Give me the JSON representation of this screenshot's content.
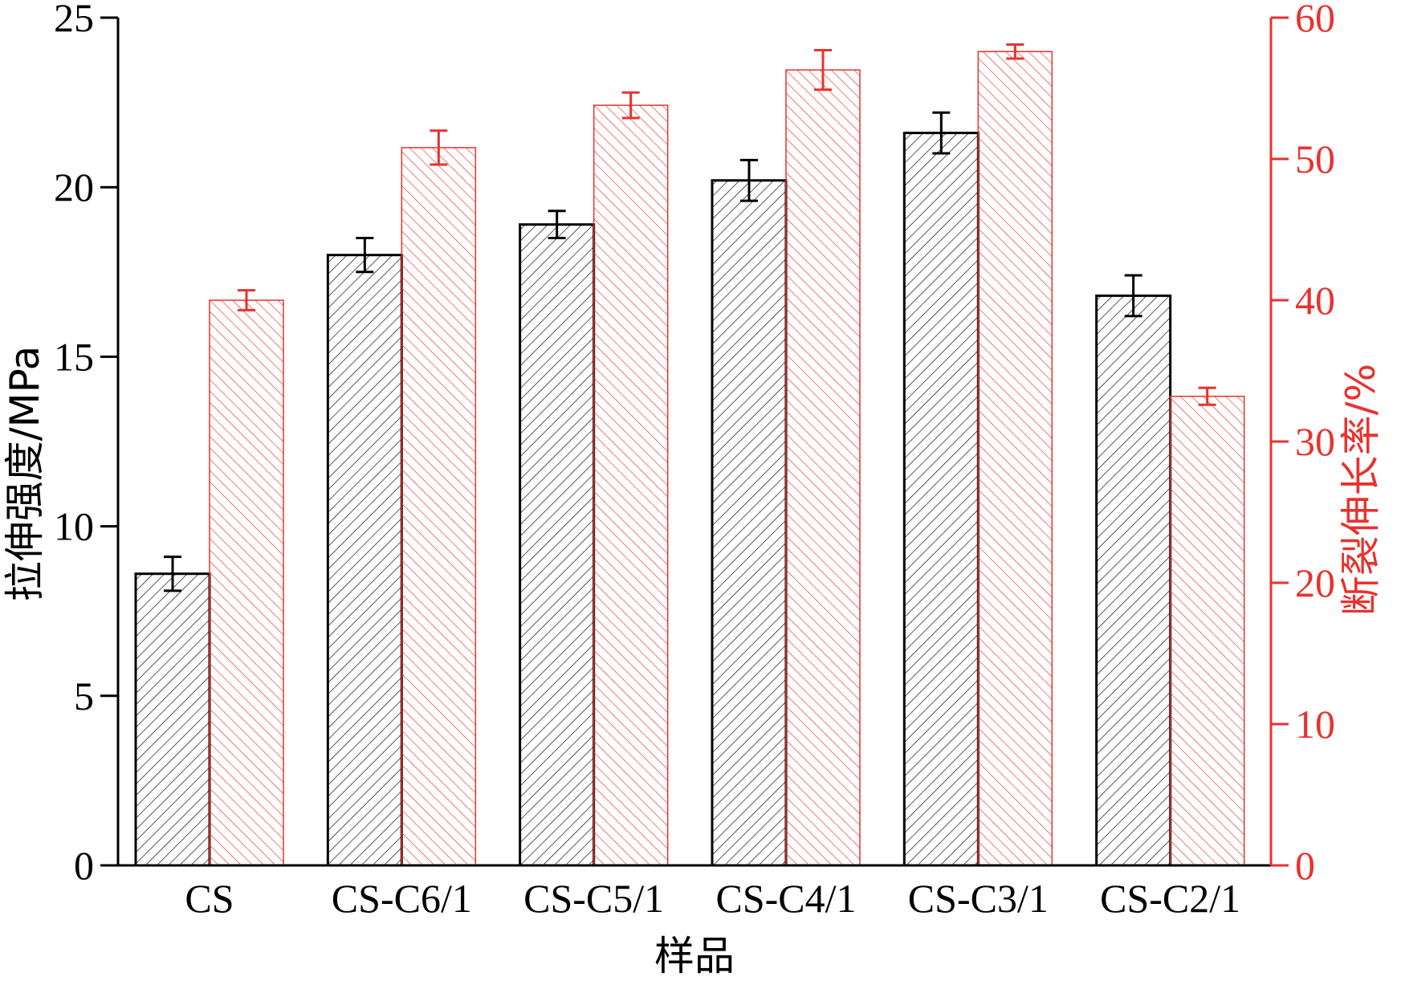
{
  "chart_data": {
    "type": "bar",
    "categories": [
      "CS",
      "CS-C6/1",
      "CS-C5/1",
      "CS-C4/1",
      "CS-C3/1",
      "CS-C2/1"
    ],
    "xlabel": "样品",
    "y_left": {
      "label": "拉伸强度/MPa",
      "ylim": [
        0,
        25
      ],
      "ticks": [
        0,
        5,
        10,
        15,
        20,
        25
      ],
      "color": "#000000"
    },
    "y_right": {
      "label": "断裂伸长率/%",
      "ylim": [
        0,
        60
      ],
      "ticks": [
        0,
        10,
        20,
        30,
        40,
        50,
        60
      ],
      "color": "#e8322e"
    },
    "series": [
      {
        "axis": "left",
        "color": "#000000",
        "hatch": "forward",
        "values": [
          8.6,
          18.0,
          18.9,
          20.2,
          21.6,
          16.8
        ],
        "errors": [
          0.5,
          0.5,
          0.4,
          0.6,
          0.6,
          0.6
        ]
      },
      {
        "axis": "right",
        "color": "#e8322e",
        "hatch": "backward",
        "values": [
          40.0,
          50.8,
          53.8,
          56.3,
          57.6,
          33.2
        ],
        "errors": [
          0.7,
          1.2,
          0.9,
          1.4,
          0.5,
          0.6
        ]
      }
    ],
    "legend": "none",
    "grid": false
  }
}
